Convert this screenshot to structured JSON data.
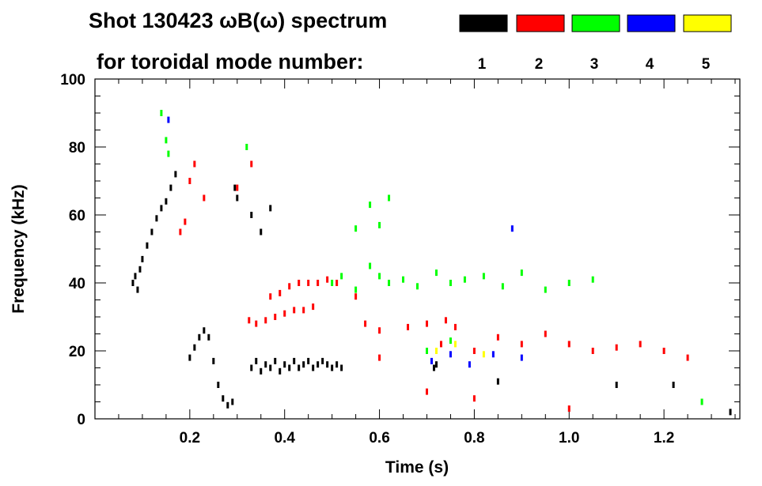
{
  "chart_data": {
    "type": "scatter",
    "title_line1": "Shot 130423 ωB(ω) spectrum",
    "title_line2": "for toroidal mode number:",
    "xlabel": "Time (s)",
    "ylabel": "Frequency (kHz)",
    "xlim": [
      0.0,
      1.36
    ],
    "ylim": [
      0,
      100
    ],
    "xticks": [
      0.2,
      0.4,
      0.6,
      0.8,
      1.0,
      1.2
    ],
    "xtick_labels": [
      "0.2",
      "0.4",
      "0.6",
      "0.8",
      "1.0",
      "1.2"
    ],
    "yticks": [
      0,
      20,
      40,
      60,
      80,
      100
    ],
    "ytick_labels": [
      "0",
      "20",
      "40",
      "60",
      "80",
      "100"
    ],
    "grid": false,
    "legend_position": "top-right",
    "series": [
      {
        "name": "1",
        "color": "#000000",
        "points": [
          [
            0.08,
            40
          ],
          [
            0.085,
            42
          ],
          [
            0.09,
            38
          ],
          [
            0.095,
            44
          ],
          [
            0.1,
            47
          ],
          [
            0.11,
            51
          ],
          [
            0.12,
            55
          ],
          [
            0.13,
            59
          ],
          [
            0.14,
            62
          ],
          [
            0.15,
            64
          ],
          [
            0.16,
            68
          ],
          [
            0.17,
            72
          ],
          [
            0.2,
            18
          ],
          [
            0.21,
            21
          ],
          [
            0.22,
            24
          ],
          [
            0.23,
            26
          ],
          [
            0.24,
            24
          ],
          [
            0.25,
            17
          ],
          [
            0.26,
            10
          ],
          [
            0.27,
            6
          ],
          [
            0.28,
            4
          ],
          [
            0.29,
            5
          ],
          [
            0.3,
            65
          ],
          [
            0.295,
            68
          ],
          [
            0.33,
            15
          ],
          [
            0.34,
            17
          ],
          [
            0.35,
            14
          ],
          [
            0.36,
            16
          ],
          [
            0.37,
            15
          ],
          [
            0.38,
            17
          ],
          [
            0.39,
            14
          ],
          [
            0.4,
            16
          ],
          [
            0.41,
            15
          ],
          [
            0.42,
            17
          ],
          [
            0.43,
            15
          ],
          [
            0.44,
            16
          ],
          [
            0.45,
            17
          ],
          [
            0.46,
            15
          ],
          [
            0.47,
            16
          ],
          [
            0.48,
            17
          ],
          [
            0.49,
            16
          ],
          [
            0.5,
            15
          ],
          [
            0.51,
            16
          ],
          [
            0.52,
            15
          ],
          [
            0.33,
            60
          ],
          [
            0.35,
            55
          ],
          [
            0.37,
            62
          ],
          [
            0.715,
            15
          ],
          [
            0.72,
            16
          ],
          [
            0.85,
            11
          ],
          [
            1.1,
            10
          ],
          [
            1.22,
            10
          ],
          [
            1.34,
            2
          ]
        ]
      },
      {
        "name": "2",
        "color": "#ff0000",
        "points": [
          [
            0.18,
            55
          ],
          [
            0.19,
            58
          ],
          [
            0.2,
            70
          ],
          [
            0.23,
            65
          ],
          [
            0.21,
            75
          ],
          [
            0.325,
            29
          ],
          [
            0.34,
            28
          ],
          [
            0.36,
            29
          ],
          [
            0.38,
            30
          ],
          [
            0.4,
            31
          ],
          [
            0.42,
            32
          ],
          [
            0.44,
            32
          ],
          [
            0.46,
            33
          ],
          [
            0.37,
            36
          ],
          [
            0.39,
            37
          ],
          [
            0.41,
            39
          ],
          [
            0.43,
            40
          ],
          [
            0.45,
            40
          ],
          [
            0.47,
            40
          ],
          [
            0.49,
            41
          ],
          [
            0.51,
            40
          ],
          [
            0.3,
            68
          ],
          [
            0.33,
            75
          ],
          [
            0.55,
            36
          ],
          [
            0.57,
            28
          ],
          [
            0.6,
            26
          ],
          [
            0.66,
            27
          ],
          [
            0.7,
            28
          ],
          [
            0.74,
            29
          ],
          [
            0.76,
            27
          ],
          [
            0.73,
            22
          ],
          [
            0.8,
            20
          ],
          [
            0.85,
            24
          ],
          [
            0.9,
            22
          ],
          [
            0.95,
            25
          ],
          [
            1.0,
            22
          ],
          [
            1.05,
            20
          ],
          [
            1.1,
            21
          ],
          [
            1.15,
            22
          ],
          [
            1.2,
            20
          ],
          [
            1.25,
            18
          ],
          [
            0.6,
            18
          ],
          [
            0.7,
            8
          ],
          [
            0.8,
            6
          ],
          [
            1.0,
            3
          ]
        ]
      },
      {
        "name": "3",
        "color": "#00ff00",
        "points": [
          [
            0.14,
            90
          ],
          [
            0.15,
            82
          ],
          [
            0.155,
            78
          ],
          [
            0.32,
            80
          ],
          [
            0.5,
            40
          ],
          [
            0.52,
            42
          ],
          [
            0.55,
            38
          ],
          [
            0.58,
            45
          ],
          [
            0.6,
            42
          ],
          [
            0.62,
            40
          ],
          [
            0.65,
            41
          ],
          [
            0.68,
            39
          ],
          [
            0.72,
            43
          ],
          [
            0.75,
            40
          ],
          [
            0.78,
            41
          ],
          [
            0.82,
            42
          ],
          [
            0.86,
            39
          ],
          [
            0.9,
            43
          ],
          [
            0.95,
            38
          ],
          [
            1.0,
            40
          ],
          [
            1.05,
            41
          ],
          [
            0.55,
            56
          ],
          [
            0.6,
            57
          ],
          [
            0.58,
            63
          ],
          [
            0.62,
            65
          ],
          [
            0.7,
            20
          ],
          [
            0.75,
            23
          ],
          [
            1.28,
            5
          ]
        ]
      },
      {
        "name": "4",
        "color": "#0000ff",
        "points": [
          [
            0.155,
            88
          ],
          [
            0.75,
            19
          ],
          [
            0.79,
            16
          ],
          [
            0.84,
            19
          ],
          [
            0.9,
            18
          ],
          [
            0.88,
            56
          ],
          [
            0.71,
            17
          ]
        ]
      },
      {
        "name": "5",
        "color": "#ffff00",
        "points": [
          [
            0.72,
            20
          ],
          [
            0.76,
            22
          ],
          [
            0.82,
            19
          ]
        ]
      }
    ]
  }
}
